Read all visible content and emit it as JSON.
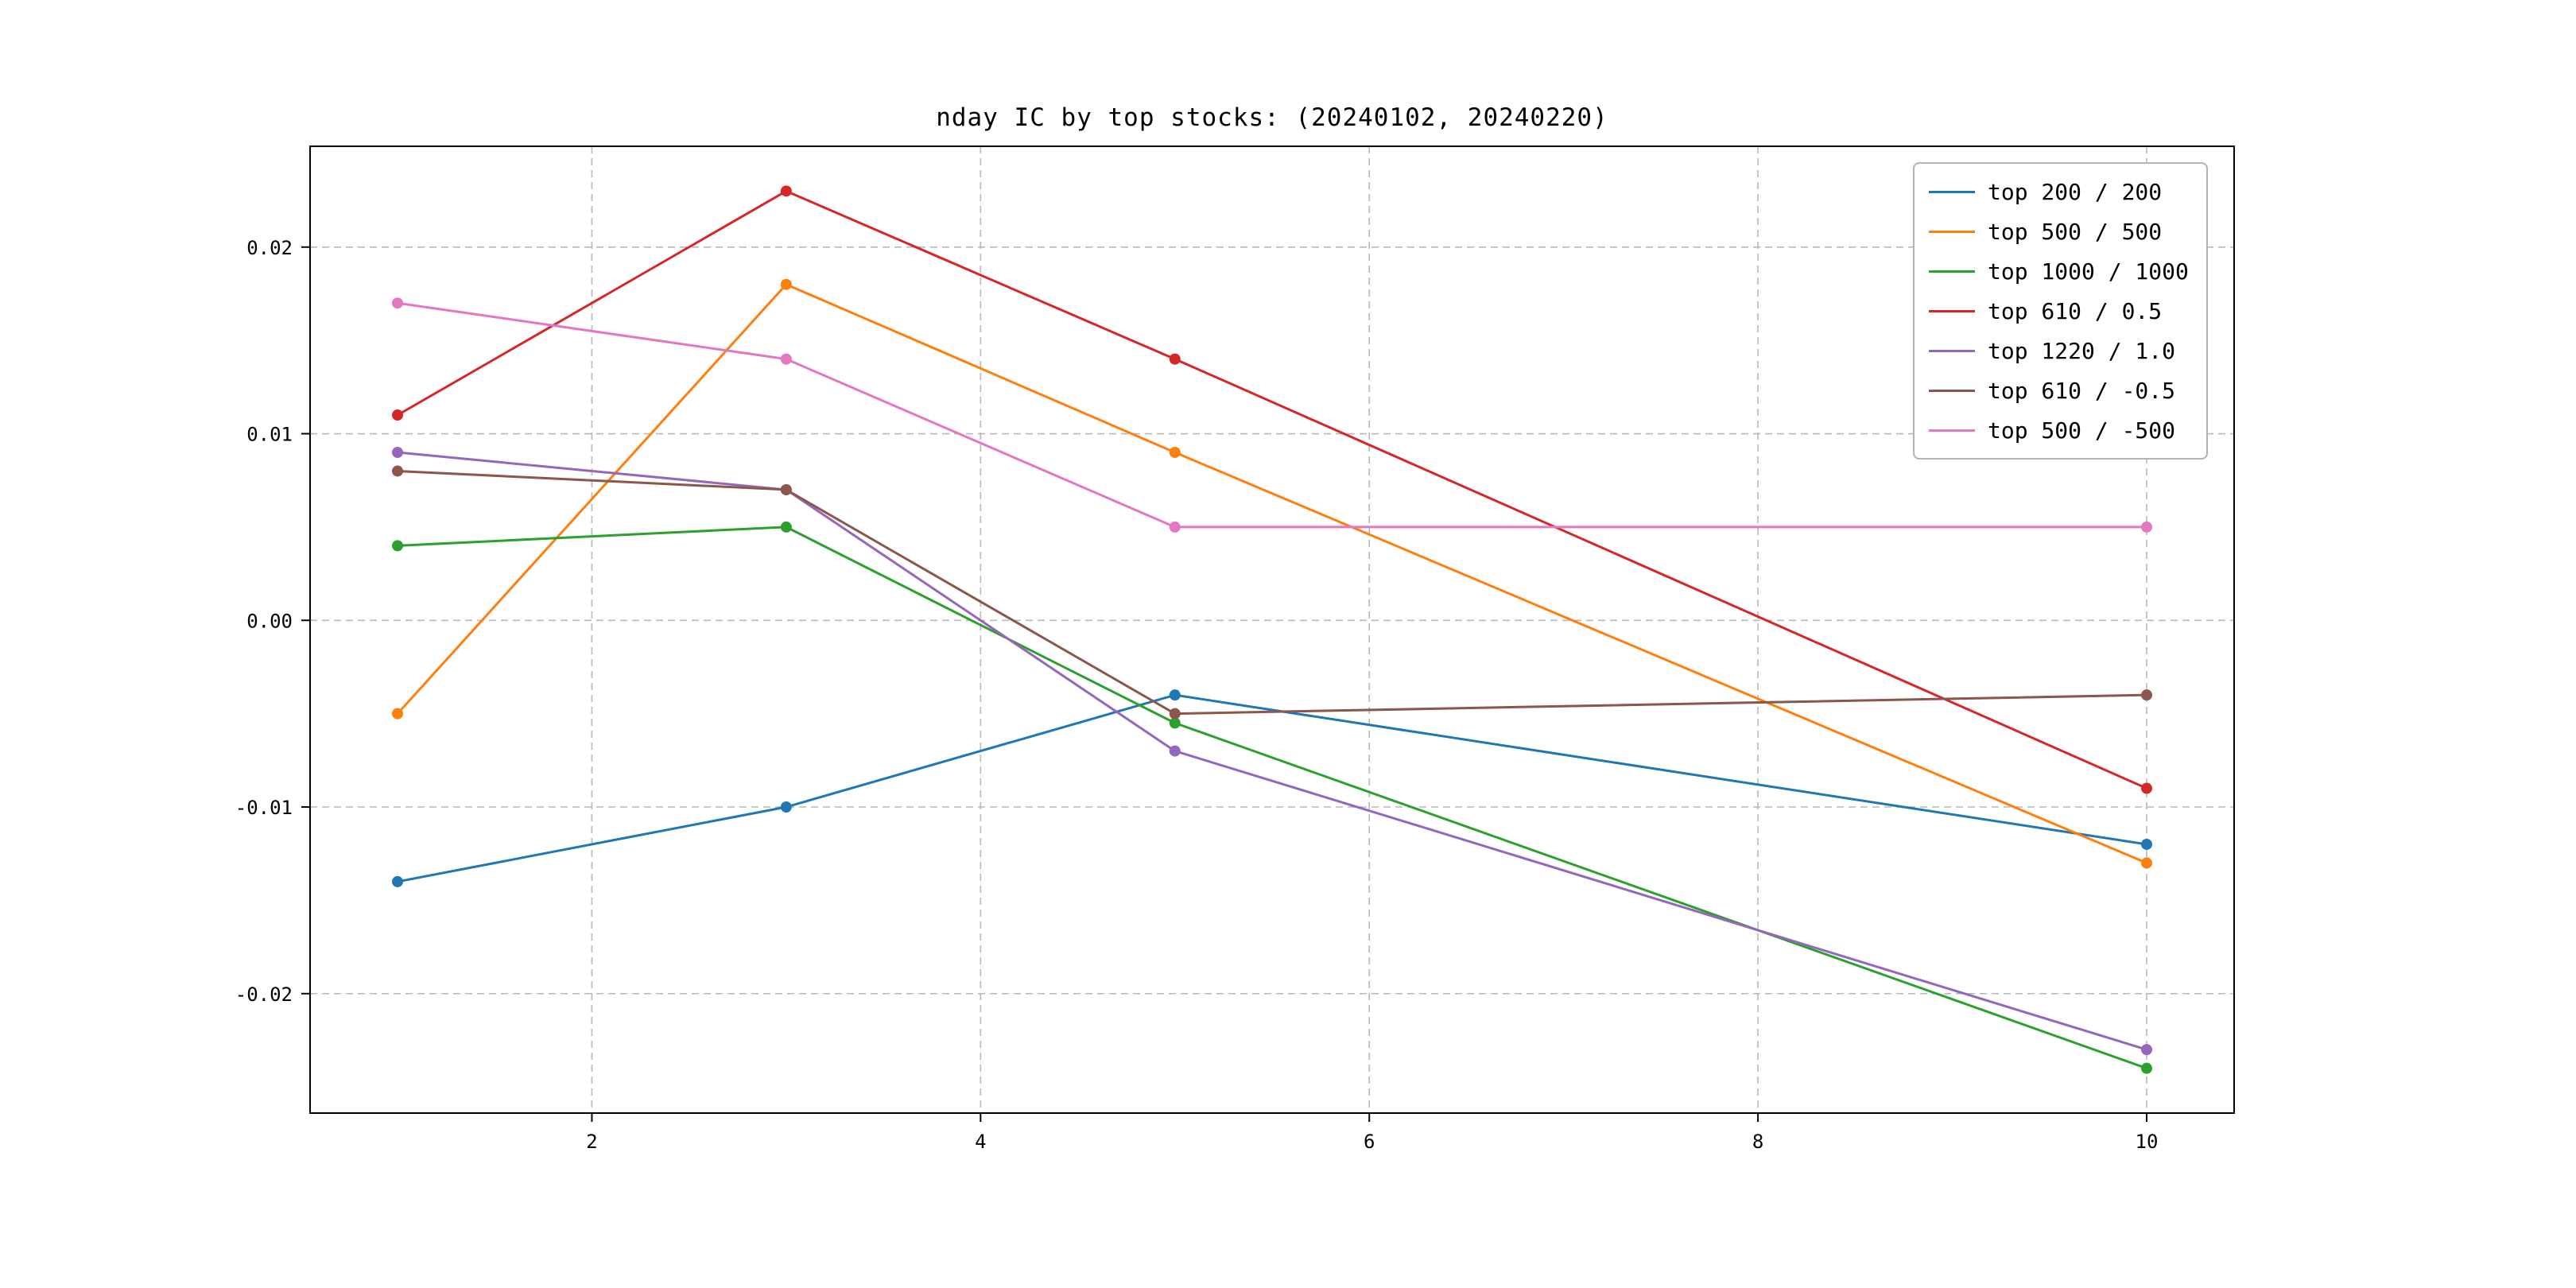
{
  "figure": {
    "background": "#ffffff",
    "frame_color": "#000000",
    "grid_color": "#b8b8b8"
  },
  "chart_data": {
    "type": "line",
    "title": "nday IC by top stocks: (20240102, 20240220)",
    "xlabel": "",
    "ylabel": "",
    "x": [
      1,
      3,
      5,
      10
    ],
    "xlim": [
      0.55,
      10.45
    ],
    "ylim": [
      -0.0264,
      0.0254
    ],
    "xticks": [
      2,
      4,
      6,
      8,
      10
    ],
    "yticks": [
      -0.02,
      -0.01,
      0.0,
      0.01,
      0.02
    ],
    "grid": true,
    "legend_position": "upper right",
    "series": [
      {
        "name": "top 200 / 200",
        "color": "#1f77b4",
        "values": [
          -0.014,
          -0.01,
          -0.004,
          -0.012
        ]
      },
      {
        "name": "top 500 / 500",
        "color": "#ff7f0e",
        "values": [
          -0.005,
          0.018,
          0.009,
          -0.013
        ]
      },
      {
        "name": "top 1000 / 1000",
        "color": "#2ca02c",
        "values": [
          0.004,
          0.005,
          -0.0055,
          -0.024
        ]
      },
      {
        "name": "top 610 / 0.5",
        "color": "#d62728",
        "values": [
          0.011,
          0.023,
          0.014,
          -0.009
        ]
      },
      {
        "name": "top 1220 / 1.0",
        "color": "#9467bd",
        "values": [
          0.009,
          0.007,
          -0.007,
          -0.023
        ]
      },
      {
        "name": "top 610 / -0.5",
        "color": "#8c564b",
        "values": [
          0.008,
          0.007,
          -0.005,
          -0.004
        ]
      },
      {
        "name": "top 500 / -500",
        "color": "#e377c2",
        "values": [
          0.017,
          0.014,
          0.005,
          0.005
        ]
      }
    ]
  }
}
